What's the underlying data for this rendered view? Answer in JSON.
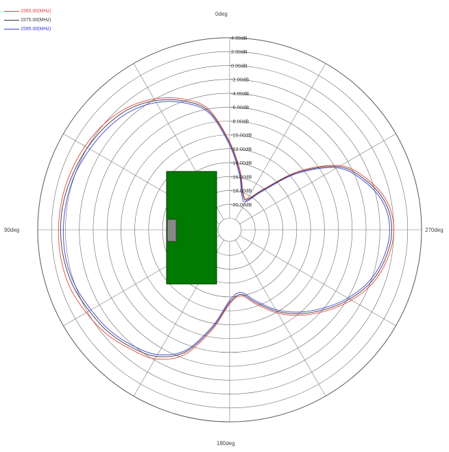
{
  "chart_data": {
    "type": "polar",
    "title": "",
    "legend": {
      "placement": "top-left",
      "entries": [
        {
          "label": "1565.00(MHz)",
          "color": "#e04040"
        },
        {
          "label": "1575.00(MHz)",
          "color": "#333333"
        },
        {
          "label": "1595.00(MHz)",
          "color": "#3a3ad8"
        }
      ]
    },
    "angle_labels": {
      "top": "0deg",
      "left": "90deg",
      "right": "270deg",
      "bottom": "180deg"
    },
    "radial_labels": [
      "4.00dB",
      "2.00dB",
      "0.00dB",
      "-2.00dB",
      "-4.00dB",
      "-6.00dB",
      "-8.00dB",
      "-10.00dB",
      "-12.00dB",
      "-14.00dB",
      "-16.00dB",
      "-18.00dB",
      "-20.00dB"
    ],
    "r_range_db": [
      -22,
      4
    ],
    "angle_direction": "counterclockwise",
    "grid": true,
    "spoke_step_deg": 30,
    "series": [
      {
        "name": "1565.00(MHz)",
        "color": "#e04040",
        "angles_deg": [
          0,
          10,
          20,
          30,
          40,
          50,
          60,
          70,
          80,
          90,
          100,
          110,
          120,
          130,
          140,
          150,
          160,
          170,
          180,
          190,
          200,
          210,
          220,
          230,
          240,
          250,
          260,
          270,
          280,
          290,
          300,
          310,
          320,
          330,
          340,
          350
        ],
        "gain_db": [
          -11,
          -6,
          -3.6,
          -1.9,
          -0.7,
          0,
          0.4,
          0.7,
          0.9,
          1,
          1,
          0.8,
          0.2,
          -0.4,
          -1.3,
          -2.2,
          -4.5,
          -9,
          -13,
          -14,
          -12.2,
          -9.8,
          -7.6,
          -5.5,
          -3.4,
          -1.6,
          -0.5,
          0,
          -0.6,
          -2.5,
          -5.2,
          -10.5,
          -16,
          -18.5,
          -18,
          -15
        ]
      },
      {
        "name": "1575.00(MHz)",
        "color": "#333333",
        "angles_deg": [
          0,
          10,
          20,
          30,
          40,
          50,
          60,
          70,
          80,
          90,
          100,
          110,
          120,
          130,
          140,
          150,
          160,
          170,
          180,
          190,
          200,
          210,
          220,
          230,
          240,
          250,
          260,
          270,
          280,
          290,
          300,
          310,
          320,
          330,
          340,
          350
        ],
        "gain_db": [
          -11.2,
          -6.3,
          -3.9,
          -2.2,
          -1,
          -0.4,
          0,
          0.3,
          0.6,
          0.7,
          0.6,
          0.3,
          -0.3,
          -0.8,
          -1.6,
          -2.6,
          -4.9,
          -9.3,
          -13.2,
          -14.2,
          -12.5,
          -10.1,
          -7.9,
          -5.8,
          -3.7,
          -1.9,
          -0.8,
          -0.3,
          -0.9,
          -2.8,
          -5.5,
          -10.8,
          -16.2,
          -18.7,
          -18.2,
          -15.3
        ]
      },
      {
        "name": "1595.00(MHz)",
        "color": "#3a3ad8",
        "angles_deg": [
          0,
          10,
          20,
          30,
          40,
          50,
          60,
          70,
          80,
          90,
          100,
          110,
          120,
          130,
          140,
          150,
          160,
          170,
          180,
          190,
          200,
          210,
          220,
          230,
          240,
          250,
          260,
          270,
          280,
          290,
          300,
          310,
          320,
          330,
          340,
          350
        ],
        "gain_db": [
          -11.5,
          -6.6,
          -4.2,
          -2.5,
          -1.4,
          -0.8,
          -0.4,
          0,
          0.2,
          0.3,
          0.3,
          0,
          -0.6,
          -1.1,
          -1.9,
          -2.9,
          -5.2,
          -9.6,
          -13.5,
          -14.5,
          -12.8,
          -10.4,
          -8.2,
          -6.1,
          -4,
          -2.2,
          -1.1,
          -0.6,
          -1.2,
          -3.1,
          -5.8,
          -11.1,
          -16.5,
          -19,
          -18.5,
          -15.6
        ]
      }
    ]
  }
}
